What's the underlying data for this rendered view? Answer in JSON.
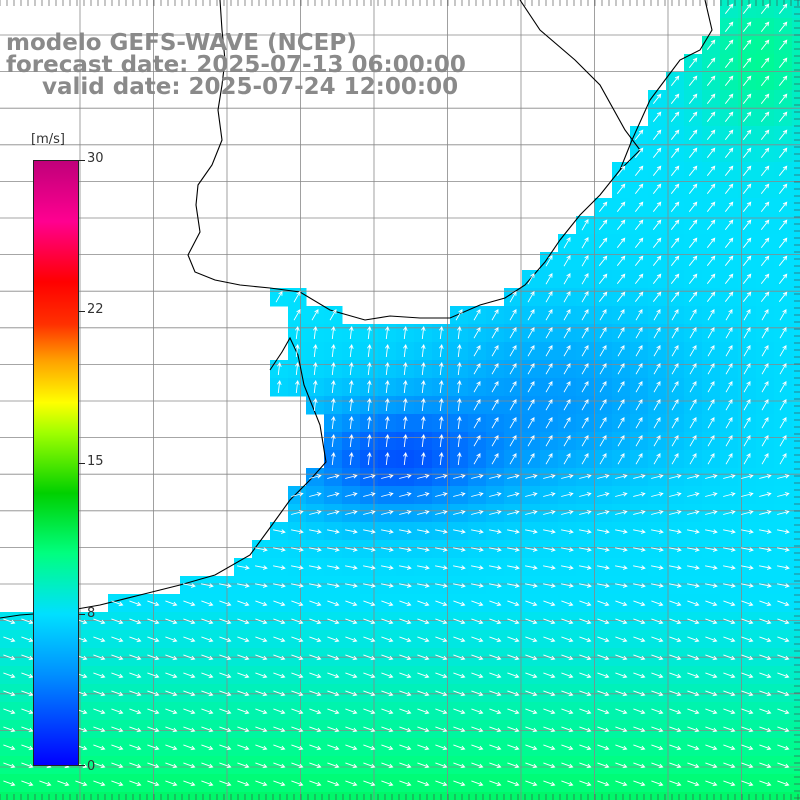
{
  "title": {
    "line1": "modelo GEFS-WAVE (NCEP)",
    "line2": "forecast date: 2025-07-13 06:00:00",
    "line3": "valid date: 2025-07-24 12:00:00"
  },
  "colorbar": {
    "unit": "[m/s]",
    "ticks": [
      "30",
      "22",
      "15",
      "8",
      "0"
    ],
    "stops": [
      "#0000ff",
      "#0090ff",
      "#00e0ff",
      "#00ff80",
      "#00d000",
      "#a0ff00",
      "#ffff00",
      "#ffa000",
      "#ff3000",
      "#ff0000",
      "#ff0090",
      "#c0007a"
    ]
  },
  "map": {
    "land_color": "#ffffff",
    "grid_color": "#888888",
    "coast_color": "#000000",
    "arrow_color": "#ffffff"
  }
}
